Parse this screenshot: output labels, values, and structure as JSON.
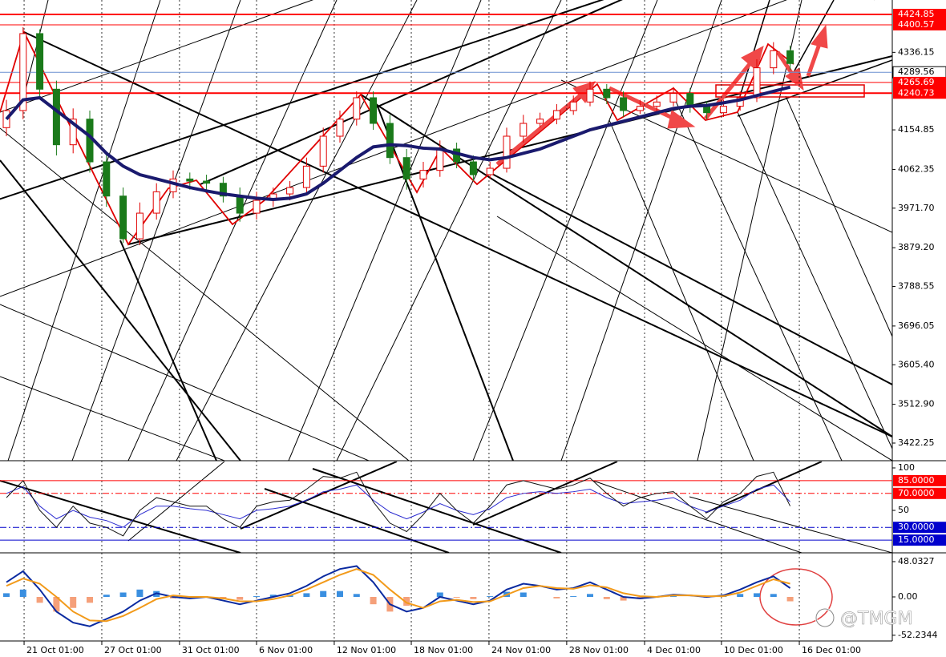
{
  "chart_data": {
    "type": "candlestick",
    "up_color": "#e00000",
    "down_color": "#1a7a1a",
    "open": [
      4160,
      4200,
      4380,
      4250,
      4120,
      4180,
      4080,
      4000,
      3900,
      3960,
      4010,
      4040,
      4035,
      4030,
      4000,
      3960,
      3990,
      4005,
      4020,
      4070,
      4140,
      4180,
      4230,
      4170,
      4090,
      4040,
      4060,
      4110,
      4080,
      4050,
      4065,
      4140,
      4170,
      4180,
      4200,
      4220,
      4250,
      4230,
      4200,
      4210,
      4220,
      4240,
      4210,
      4195,
      4210,
      4230,
      4300,
      4340
    ],
    "high": [
      4225,
      4395,
      4390,
      4270,
      4205,
      4200,
      4105,
      4020,
      3985,
      4030,
      4060,
      4055,
      4050,
      4045,
      4020,
      4010,
      4020,
      4035,
      4090,
      4160,
      4200,
      4245,
      4245,
      4190,
      4110,
      4080,
      4130,
      4125,
      4095,
      4080,
      4160,
      4190,
      4195,
      4215,
      4235,
      4268,
      4262,
      4245,
      4225,
      4235,
      4255,
      4252,
      4222,
      4225,
      4245,
      4320,
      4360,
      4352
    ],
    "low": [
      4140,
      4180,
      4230,
      4095,
      4100,
      4055,
      3975,
      3890,
      3885,
      3945,
      3995,
      4015,
      4012,
      3985,
      3940,
      3945,
      3975,
      3990,
      4005,
      4055,
      4125,
      4165,
      4155,
      4075,
      4015,
      4020,
      4045,
      4065,
      4035,
      4040,
      4055,
      4125,
      4160,
      4168,
      4190,
      4210,
      4215,
      4185,
      4192,
      4198,
      4210,
      4195,
      4180,
      4185,
      4200,
      4220,
      4285,
      4295
    ],
    "close": [
      4200,
      4380,
      4250,
      4120,
      4180,
      4080,
      4000,
      3900,
      3960,
      4010,
      4040,
      4035,
      4030,
      4000,
      3960,
      3990,
      4005,
      4020,
      4070,
      4140,
      4180,
      4230,
      4170,
      4090,
      4040,
      4060,
      4110,
      4080,
      4050,
      4065,
      4140,
      4170,
      4180,
      4200,
      4220,
      4250,
      4230,
      4200,
      4210,
      4220,
      4240,
      4210,
      4195,
      4210,
      4230,
      4300,
      4340,
      4310
    ],
    "ma": {
      "color": "#1a1a6e",
      "values": [
        4180,
        4225,
        4230,
        4200,
        4170,
        4140,
        4100,
        4070,
        4050,
        4040,
        4030,
        4020,
        4012,
        4005,
        4000,
        3995,
        3992,
        3995,
        4005,
        4030,
        4060,
        4090,
        4115,
        4120,
        4118,
        4112,
        4110,
        4100,
        4090,
        4085,
        4090,
        4100,
        4110,
        4125,
        4140,
        4155,
        4165,
        4175,
        4185,
        4195,
        4205,
        4210,
        4212,
        4218,
        4225,
        4235,
        4245,
        4255
      ]
    },
    "ylim": [
      3381,
      4458.6
    ],
    "yticks": [
      4336.15,
      4154.85,
      4062.35,
      {
        "value": 3971.7,
        "label": "3971.70"
      },
      {
        "value": 3879.2,
        "label": "3879.20"
      },
      3788.55,
      3696.05,
      {
        "value": 3605.4,
        "label": "3605.40"
      },
      {
        "value": 3512.9,
        "label": "3512.90"
      },
      3422.25
    ],
    "levels": [
      {
        "value": 4424.85,
        "color": "#ff0000",
        "width": 2
      },
      {
        "value": 4400.57,
        "color": "#ff0000",
        "width": 1
      },
      {
        "value": 4289.56,
        "color": "#6a8fd0",
        "width": 1,
        "current": true
      },
      {
        "value": 4265.69,
        "color": "#ff0000",
        "width": 1
      },
      {
        "value": 4240.73,
        "color": "#ff0000",
        "width": 2
      }
    ],
    "xticks": [
      {
        "value": 1.06,
        "label": "21 Oct 01:00"
      },
      {
        "value": 5.72,
        "label": "27 Oct 01:00"
      },
      {
        "value": 10.38,
        "label": "31 Oct 01:00"
      },
      {
        "value": 15,
        "label": "6 Nov 01:00"
      },
      {
        "value": 19.66,
        "label": "12 Nov 01:00"
      },
      {
        "value": 24.28,
        "label": "18 Nov 01:00"
      },
      {
        "value": 28.94,
        "label": "24 Nov 01:00"
      },
      {
        "value": 33.6,
        "label": "28 Nov 01:00"
      },
      {
        "value": 38.27,
        "label": "4 Dec 01:00"
      },
      {
        "value": 42.88,
        "label": "10 Dec 01:00"
      },
      {
        "value": 47.55,
        "label": "16 Dec 01:00"
      }
    ],
    "oscillator": {
      "ylim": [
        0,
        108.5
      ],
      "yticks": [
        100,
        50
      ],
      "levels": [
        {
          "value": 85,
          "label": "85.0000",
          "color": "#ff0000",
          "dash": "none",
          "box": "#ff0000"
        },
        {
          "value": 70,
          "label": "70.0000",
          "color": "#ff0000",
          "dash": "8 3 2 3",
          "box": "#ff0000"
        },
        {
          "value": 30,
          "label": "30.0000",
          "color": "#0000cc",
          "dash": "8 3 2 3",
          "box": "#0000cc"
        },
        {
          "value": 15,
          "label": "15.0000",
          "color": "#0000cc",
          "dash": "none",
          "box": "#0000cc"
        }
      ],
      "series": [
        {
          "color": "#2a2ad0",
          "values": [
            70,
            78,
            55,
            40,
            50,
            42,
            38,
            30,
            45,
            55,
            55,
            52,
            50,
            45,
            40,
            50,
            52,
            55,
            62,
            72,
            75,
            80,
            62,
            48,
            40,
            48,
            58,
            50,
            45,
            52,
            65,
            70,
            72,
            70,
            72,
            75,
            65,
            58,
            60,
            62,
            65,
            55,
            48,
            55,
            62,
            75,
            80,
            60
          ]
        },
        {
          "color": "#111111",
          "values": [
            65,
            85,
            50,
            30,
            55,
            35,
            30,
            20,
            50,
            65,
            60,
            55,
            55,
            40,
            30,
            55,
            60,
            62,
            75,
            90,
            88,
            95,
            60,
            35,
            25,
            45,
            70,
            50,
            35,
            55,
            80,
            85,
            80,
            75,
            80,
            88,
            70,
            55,
            65,
            70,
            72,
            55,
            40,
            60,
            70,
            90,
            95,
            55
          ]
        }
      ]
    },
    "macd": {
      "ylim": [
        -60,
        60
      ],
      "yticks": [
        48.0327,
        {
          "value": 0,
          "label": "0.00"
        },
        -52.2344
      ],
      "pos_color": "#3a8fe0",
      "neg_color": "#f5a07a",
      "histogram": [
        5,
        10,
        -8,
        -20,
        -15,
        -8,
        3,
        6,
        10,
        8,
        -2,
        -2,
        0,
        -3,
        -4,
        1,
        3,
        3,
        5,
        8,
        8,
        4,
        -10,
        -20,
        -12,
        0,
        6,
        -1,
        -3,
        1,
        7,
        6,
        0,
        -2,
        1,
        4,
        -3,
        -5,
        -3,
        0,
        1,
        0,
        -1,
        1,
        4,
        5,
        4,
        -6
      ],
      "series": [
        {
          "color": "#0a2aa0",
          "values": [
            20,
            35,
            10,
            -20,
            -35,
            -40,
            -30,
            -20,
            -5,
            5,
            0,
            -2,
            0,
            -5,
            -10,
            -5,
            0,
            5,
            15,
            28,
            38,
            42,
            20,
            -10,
            -20,
            -15,
            0,
            -5,
            -10,
            -5,
            10,
            18,
            15,
            10,
            12,
            20,
            10,
            0,
            -2,
            0,
            3,
            2,
            0,
            2,
            10,
            20,
            28,
            12
          ]
        },
        {
          "color": "#f29a1a",
          "values": [
            15,
            25,
            18,
            0,
            -20,
            -32,
            -33,
            -26,
            -15,
            -3,
            2,
            0,
            0,
            -2,
            -6,
            -6,
            -3,
            2,
            10,
            20,
            30,
            38,
            30,
            10,
            -8,
            -15,
            -6,
            -4,
            -7,
            -6,
            3,
            12,
            15,
            12,
            11,
            16,
            13,
            5,
            1,
            0,
            2,
            2,
            1,
            1,
            6,
            15,
            24,
            18
          ]
        }
      ]
    },
    "watermark": "@TMGM"
  }
}
